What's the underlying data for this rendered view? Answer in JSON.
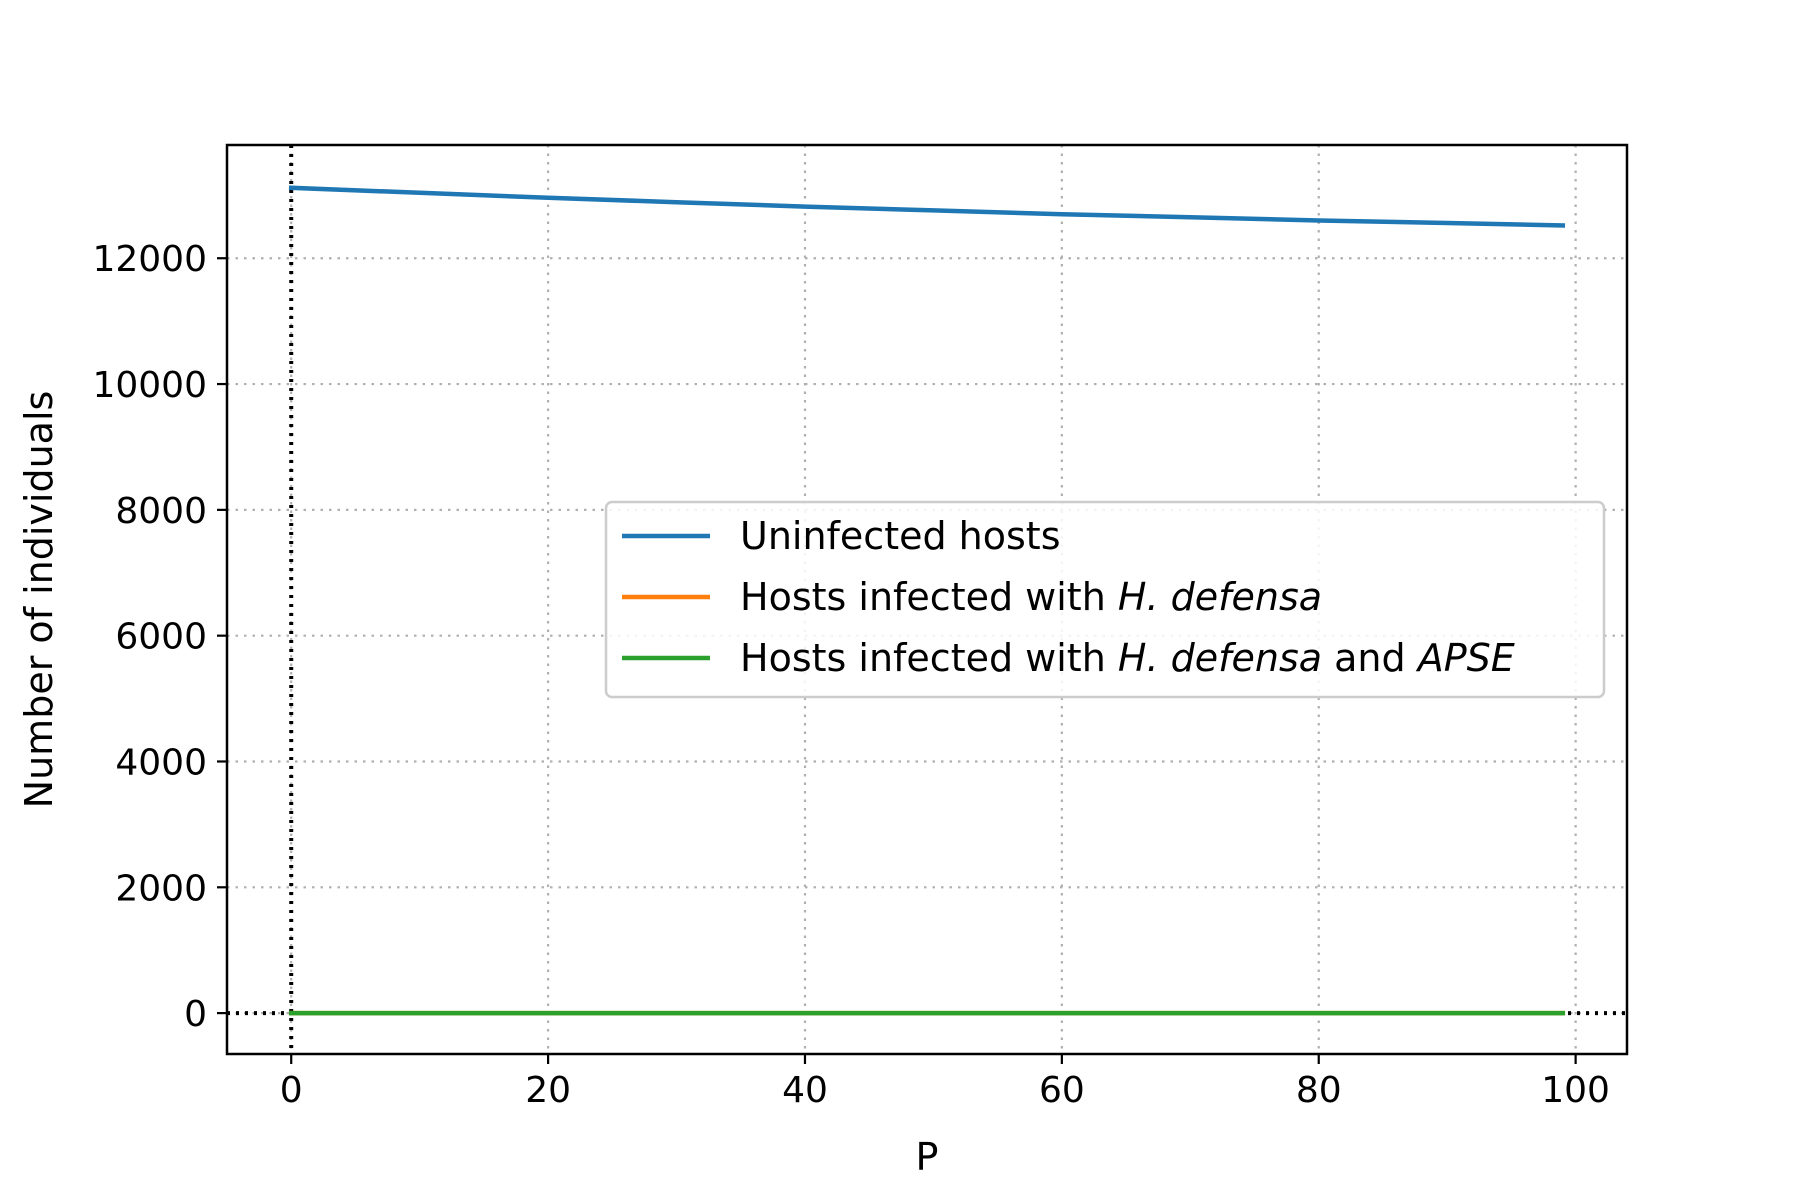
{
  "chart_data": {
    "type": "line",
    "xlabel": "P",
    "ylabel": "Number of individuals",
    "xlim": [
      -5,
      104
    ],
    "ylim": [
      -650,
      13800
    ],
    "xticks": [
      0,
      20,
      40,
      60,
      80,
      100
    ],
    "yticks": [
      0,
      2000,
      4000,
      6000,
      8000,
      10000,
      12000
    ],
    "grid": true,
    "legend_position": "center-right",
    "reference_lines": {
      "x": 0,
      "y": 0,
      "style": "dotted",
      "color": "#000000"
    },
    "series": [
      {
        "name": "Uninfected hosts",
        "color": "#1f77b4",
        "x": [
          0,
          10,
          20,
          30,
          40,
          50,
          60,
          70,
          80,
          90,
          99
        ],
        "y": [
          13120,
          13040,
          12960,
          12890,
          12820,
          12760,
          12700,
          12650,
          12600,
          12560,
          12520
        ]
      },
      {
        "name": "Hosts infected with H.defensa",
        "color": "#ff7f0e",
        "x": [
          0,
          99
        ],
        "y": [
          0,
          0
        ]
      },
      {
        "name": "Hosts infected with H.defensa and APSE",
        "color": "#2ca02c",
        "x": [
          0,
          99
        ],
        "y": [
          0,
          0
        ]
      }
    ],
    "legend": [
      {
        "parts": [
          {
            "text": "Uninfected hosts",
            "italic": false
          }
        ]
      },
      {
        "parts": [
          {
            "text": "Hosts infected with ",
            "italic": false
          },
          {
            "text": "H. defensa",
            "italic": true
          }
        ]
      },
      {
        "parts": [
          {
            "text": "Hosts infected with ",
            "italic": false
          },
          {
            "text": "H. defensa",
            "italic": true
          },
          {
            "text": " and ",
            "italic": false
          },
          {
            "text": "APSE",
            "italic": true
          }
        ]
      }
    ]
  }
}
